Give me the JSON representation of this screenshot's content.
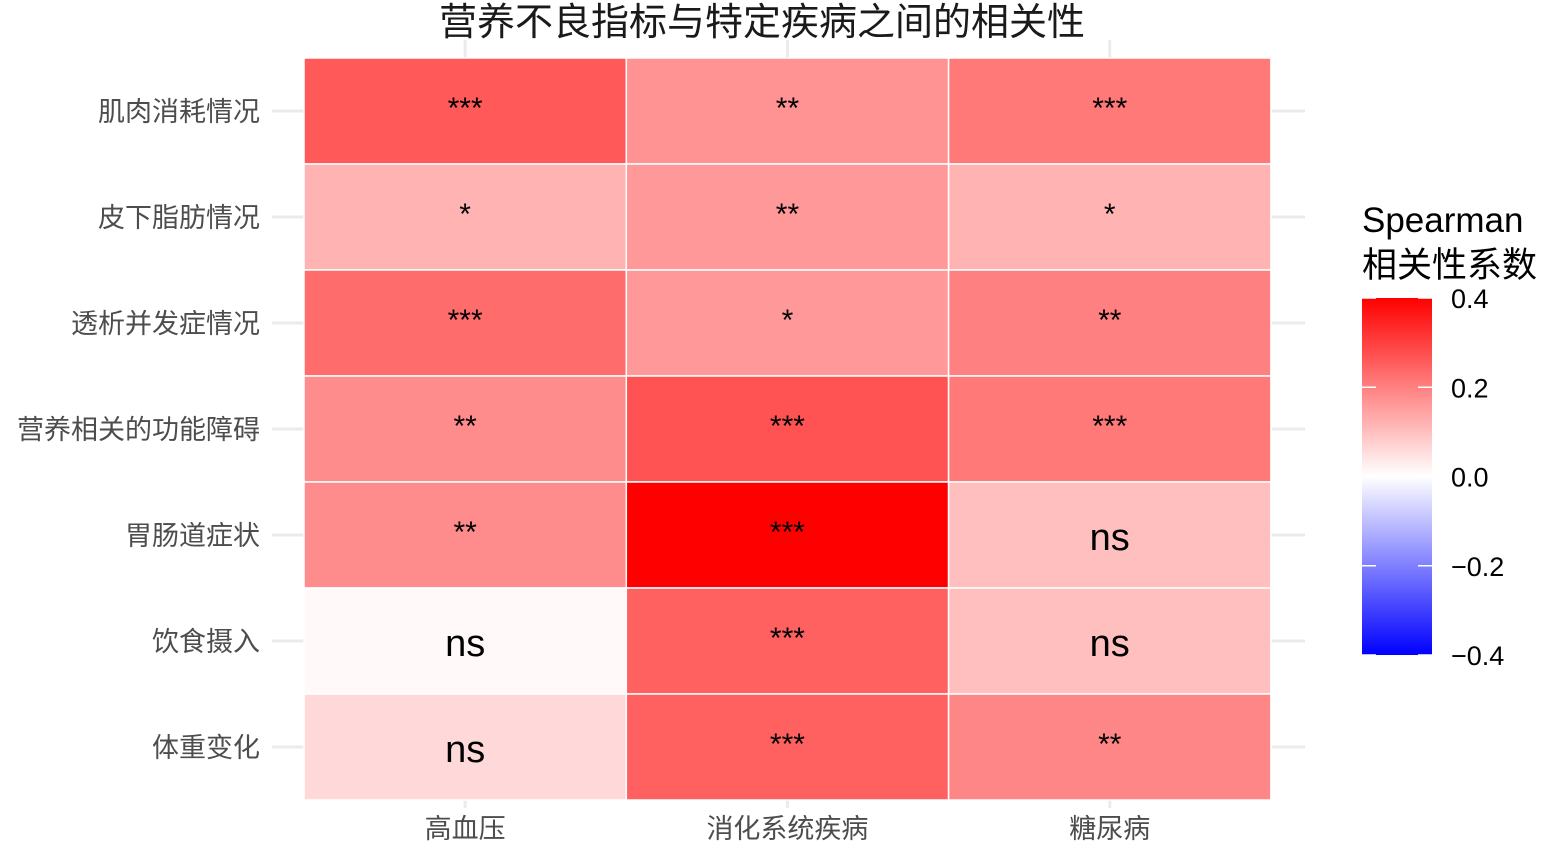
{
  "chart_data": {
    "type": "heatmap",
    "title": "营养不良指标与特定疾病之间的相关性",
    "x_categories": [
      "高血压",
      "消化系统疾病",
      "糖尿病"
    ],
    "y_categories": [
      "肌肉消耗情况",
      "皮下脂肪情况",
      "透析并发症情况",
      "营养相关的功能障碍",
      "胃肠道症状",
      "饮食摄入",
      "体重变化"
    ],
    "values": [
      [
        0.26,
        0.17,
        0.21
      ],
      [
        0.12,
        0.16,
        0.12
      ],
      [
        0.23,
        0.16,
        0.2
      ],
      [
        0.18,
        0.27,
        0.21
      ],
      [
        0.18,
        0.4,
        0.1
      ],
      [
        0.01,
        0.25,
        0.1
      ],
      [
        0.06,
        0.25,
        0.19
      ]
    ],
    "significance": [
      [
        "***",
        "**",
        "***"
      ],
      [
        "*",
        "**",
        "*"
      ],
      [
        "***",
        "*",
        "**"
      ],
      [
        "**",
        "***",
        "***"
      ],
      [
        "**",
        "***",
        "ns"
      ],
      [
        "ns",
        "***",
        "ns"
      ],
      [
        "ns",
        "***",
        "**"
      ]
    ],
    "legend": {
      "title_line1": "Spearman",
      "title_line2": "相关性系数",
      "ticks": [
        "0.4",
        "0.2",
        "0.0",
        "−0.2",
        "−0.4"
      ],
      "tick_values": [
        0.4,
        0.2,
        0.0,
        -0.2,
        -0.4
      ],
      "range": [
        -0.4,
        0.4
      ],
      "colors": {
        "low": "#0000ff",
        "mid": "#ffffff",
        "high": "#ff0000"
      },
      "placement": "right"
    }
  }
}
